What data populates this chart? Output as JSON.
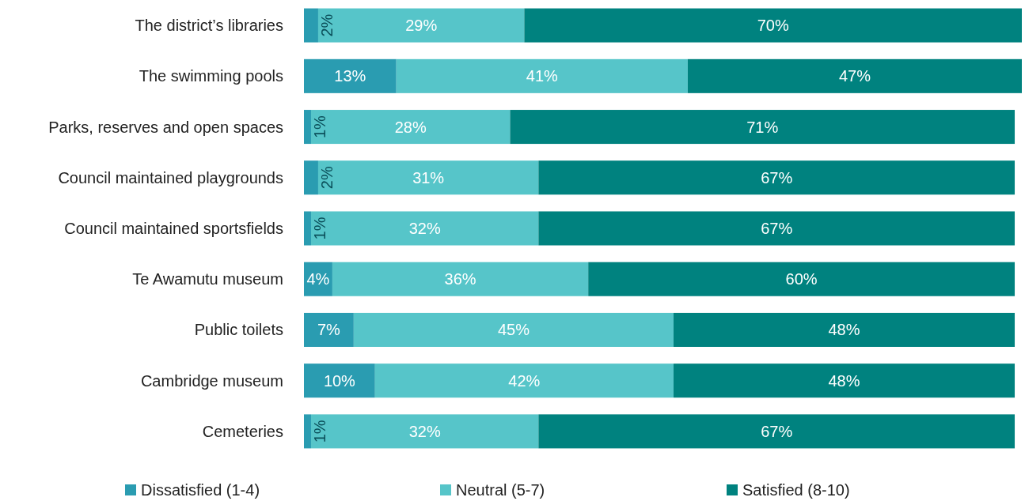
{
  "chart_data": {
    "type": "bar",
    "orientation": "horizontal",
    "stacked": true,
    "legend": "bottom",
    "categories": [
      "The district’s libraries",
      "The swimming pools",
      "Parks, reserves and open spaces",
      "Council maintained playgrounds",
      "Council maintained sportsfields",
      "Te Awamutu museum",
      "Public toilets",
      "Cambridge museum",
      "Cemeteries"
    ],
    "series": [
      {
        "name": "Dissatisfied (1-4)",
        "color": "#2a9cb1",
        "values": [
          2,
          13,
          1,
          2,
          1,
          4,
          7,
          10,
          1
        ],
        "value_labels": [
          "2%",
          "13%",
          "1%",
          "2%",
          "1%",
          "4%",
          "7%",
          "10%",
          "1%"
        ]
      },
      {
        "name": "Neutral (5-7)",
        "color": "#56c5c9",
        "values": [
          29,
          41,
          28,
          31,
          32,
          36,
          45,
          42,
          32
        ],
        "value_labels": [
          "29%",
          "41%",
          "28%",
          "31%",
          "32%",
          "36%",
          "45%",
          "42%",
          "32%"
        ]
      },
      {
        "name": "Satisfied (8-10)",
        "color": "#00827f",
        "values": [
          70,
          47,
          71,
          67,
          67,
          60,
          48,
          48,
          67
        ],
        "value_labels": [
          "70%",
          "47%",
          "71%",
          "67%",
          "67%",
          "60%",
          "48%",
          "48%",
          "67%"
        ]
      }
    ]
  }
}
